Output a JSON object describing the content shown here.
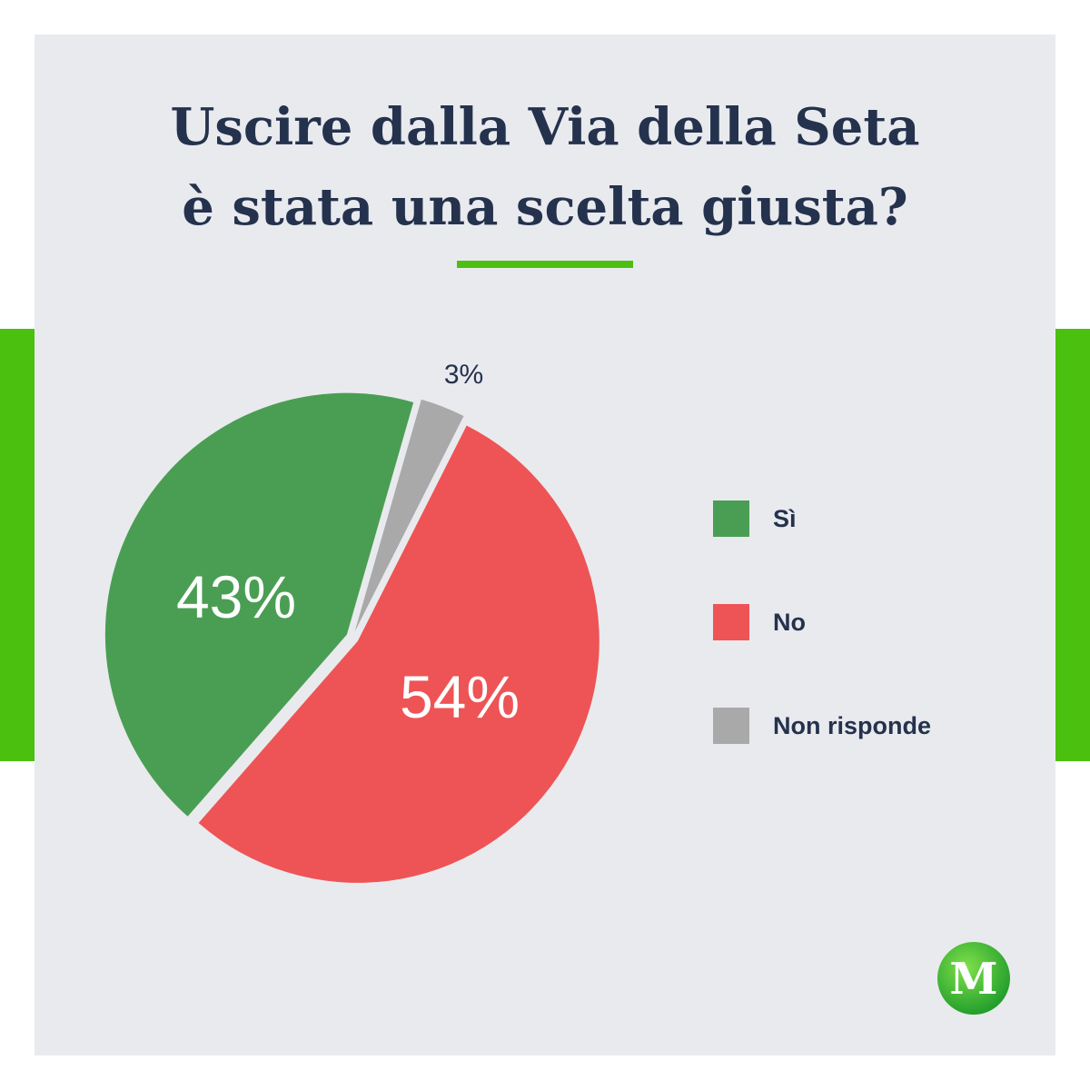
{
  "title_lines": [
    "Uscire dalla Via della Seta",
    "è stata una scelta giusta?"
  ],
  "chart_data": {
    "type": "pie",
    "title": "Uscire dalla Via della Seta è stata una scelta giusta?",
    "slices": [
      {
        "label": "Sì",
        "value": 43,
        "value_label": "43%",
        "color": "#4a9e53"
      },
      {
        "label": "No",
        "value": 54,
        "value_label": "54%",
        "color": "#ee5455"
      },
      {
        "label": "Non risponde",
        "value": 3,
        "value_label": "3%",
        "color": "#a9a9a9"
      }
    ],
    "legend_position": "right"
  },
  "colors": {
    "accent": "#4cc00f",
    "panel": "#e9eaee",
    "text": "#24324d"
  },
  "logo": {
    "letter": "M"
  }
}
